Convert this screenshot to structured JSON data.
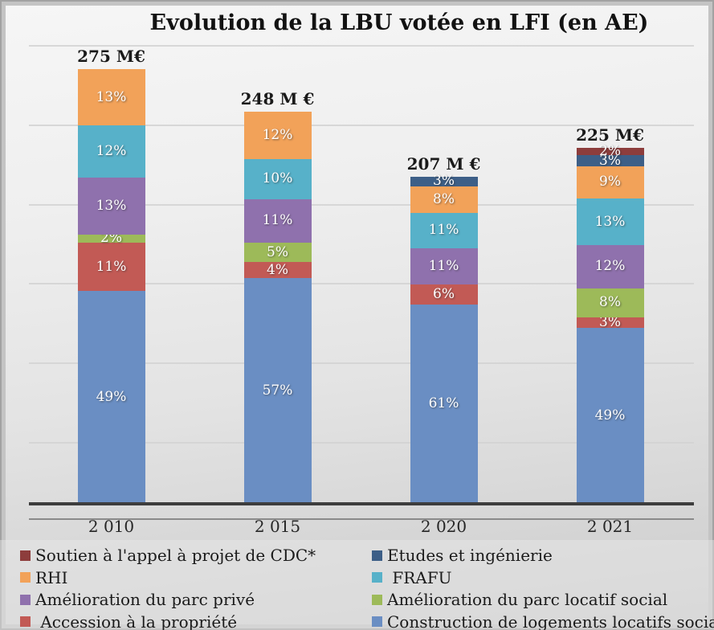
{
  "title": "Evolution de la LBU votée en LFI (en AE)",
  "chart_data": {
    "type": "bar",
    "stacked": true,
    "title": "Evolution de la LBU votée en LFI (en AE)",
    "categories": [
      "2 010",
      "2 015",
      "2 020",
      "2 021"
    ],
    "totals_meur": [
      275,
      248,
      207,
      225
    ],
    "total_labels": [
      "275 M€",
      "248 M €",
      "207 M €",
      "225 M€"
    ],
    "value_unit": "percent of yearly total (column totals in M€)",
    "grid": "horizontal light gridlines, no value axis labels",
    "legend_position": "bottom, two columns",
    "series": [
      {
        "key": "construction",
        "name": "Construction de logements locatifs sociaux",
        "color": "#6A8EC3",
        "values": [
          49,
          57,
          61,
          49
        ]
      },
      {
        "key": "accession",
        "name": "Accession à la propriété",
        "color": "#C25A55",
        "values": [
          11,
          4,
          6,
          3
        ]
      },
      {
        "key": "parc_locatif_social",
        "name": "Amélioration du parc locatif social",
        "color": "#9DBA59",
        "values": [
          2,
          5,
          0,
          8
        ]
      },
      {
        "key": "parc_prive",
        "name": "Amélioration du parc privé",
        "color": "#8F71AD",
        "values": [
          13,
          11,
          11,
          12
        ]
      },
      {
        "key": "frafu",
        "name": "FRAFU",
        "color": "#57B1C9",
        "values": [
          12,
          10,
          11,
          13
        ]
      },
      {
        "key": "rhi",
        "name": "RHI",
        "color": "#F2A259",
        "values": [
          13,
          12,
          8,
          9
        ]
      },
      {
        "key": "etudes",
        "name": "Etudes et ingénierie",
        "color": "#3D5F87",
        "values": [
          0,
          0,
          3,
          3
        ]
      },
      {
        "key": "soutien_cdc",
        "name": "Soutien à l'appel à projet de CDC*",
        "color": "#8D3D3C",
        "values": [
          0,
          0,
          0,
          2
        ]
      }
    ],
    "legend_rows": [
      {
        "left": {
          "key": "soutien_cdc",
          "label": "Soutien à l'appel à projet de CDC*"
        },
        "right": {
          "key": "etudes",
          "label": "Etudes et ingénierie"
        }
      },
      {
        "left": {
          "key": "rhi",
          "label": "RHI"
        },
        "right": {
          "key": "frafu",
          "label": " FRAFU"
        }
      },
      {
        "left": {
          "key": "parc_prive",
          "label": "Amélioration du parc privé"
        },
        "right": {
          "key": "parc_locatif_social",
          "label": "Amélioration du parc locatif social"
        }
      },
      {
        "left": {
          "key": "accession",
          "label": " Accession à la propriété"
        },
        "right": {
          "key": "construction",
          "label": "Construction de logements locatifs sociaux"
        }
      }
    ]
  }
}
